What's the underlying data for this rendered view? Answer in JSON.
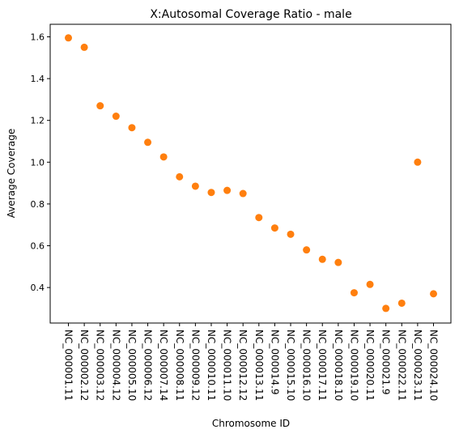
{
  "chart_data": {
    "type": "scatter",
    "title": "X:Autosomal Coverage Ratio - male",
    "xlabel": "Chromosome ID",
    "ylabel": "Average Coverage",
    "ylim": [
      0.23,
      1.66
    ],
    "yticks": [
      "0.4",
      "0.6",
      "0.8",
      "1.0",
      "1.2",
      "1.4",
      "1.6"
    ],
    "grid": false,
    "marker_color": "#ff7f0e",
    "categories": [
      "NC_000001.11",
      "NC_000002.12",
      "NC_000003.12",
      "NC_000004.12",
      "NC_000005.10",
      "NC_000006.12",
      "NC_000007.14",
      "NC_000008.11",
      "NC_000009.12",
      "NC_000010.11",
      "NC_000011.10",
      "NC_000012.12",
      "NC_000013.11",
      "NC_000014.9",
      "NC_000015.10",
      "NC_000016.10",
      "NC_000017.11",
      "NC_000018.10",
      "NC_000019.10",
      "NC_000020.11",
      "NC_000021.9",
      "NC_000022.11",
      "NC_000023.11",
      "NC_000024.10"
    ],
    "values": [
      1.595,
      1.55,
      1.27,
      1.22,
      1.165,
      1.095,
      1.025,
      0.93,
      0.885,
      0.855,
      0.865,
      0.85,
      0.735,
      0.685,
      0.655,
      0.58,
      0.535,
      0.52,
      0.375,
      0.415,
      0.3,
      0.325,
      1.0,
      0.37
    ]
  }
}
